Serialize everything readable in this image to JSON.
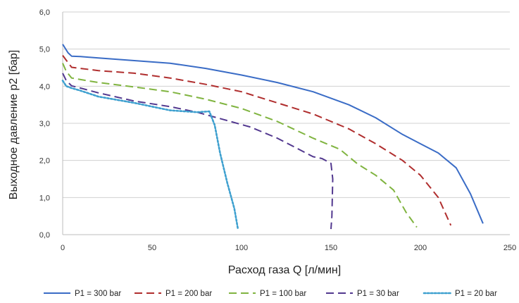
{
  "chart_data": {
    "type": "line",
    "title": "",
    "xlabel": "Расход газа Q [л/мин]",
    "ylabel": "Выходное давление p2 [бар]",
    "xlim": [
      0,
      250
    ],
    "ylim": [
      0,
      6
    ],
    "x_ticks": [
      0,
      50,
      100,
      150,
      200,
      250
    ],
    "x_tick_labels": [
      "0",
      "50",
      "100",
      "150",
      "200",
      "250"
    ],
    "y_ticks": [
      0,
      1,
      2,
      3,
      4,
      5,
      6
    ],
    "y_tick_labels": [
      "0,0",
      "1,0",
      "2,0",
      "3,0",
      "4,0",
      "5,0",
      "6,0"
    ],
    "grid": "horizontal",
    "legend_position": "bottom",
    "series": [
      {
        "name": "P1 = 300 bar",
        "color": "#3a6cc6",
        "dash": "solid",
        "points": [
          [
            0,
            5.13
          ],
          [
            3,
            4.9
          ],
          [
            5,
            4.81
          ],
          [
            10,
            4.8
          ],
          [
            20,
            4.76
          ],
          [
            40,
            4.69
          ],
          [
            60,
            4.62
          ],
          [
            80,
            4.48
          ],
          [
            100,
            4.3
          ],
          [
            120,
            4.1
          ],
          [
            140,
            3.85
          ],
          [
            160,
            3.5
          ],
          [
            175,
            3.15
          ],
          [
            190,
            2.7
          ],
          [
            200,
            2.45
          ],
          [
            210,
            2.2
          ],
          [
            220,
            1.8
          ],
          [
            228,
            1.1
          ],
          [
            235,
            0.3
          ]
        ]
      },
      {
        "name": "P1 = 200 bar",
        "color": "#b02e2e",
        "dash": "dashed",
        "points": [
          [
            0,
            4.83
          ],
          [
            2,
            4.7
          ],
          [
            5,
            4.51
          ],
          [
            10,
            4.48
          ],
          [
            20,
            4.42
          ],
          [
            40,
            4.35
          ],
          [
            60,
            4.22
          ],
          [
            80,
            4.05
          ],
          [
            100,
            3.85
          ],
          [
            120,
            3.55
          ],
          [
            140,
            3.25
          ],
          [
            160,
            2.85
          ],
          [
            175,
            2.45
          ],
          [
            190,
            2.0
          ],
          [
            200,
            1.6
          ],
          [
            210,
            1.0
          ],
          [
            217,
            0.25
          ]
        ]
      },
      {
        "name": "P1 = 100 bar",
        "color": "#80b440",
        "dash": "dashed",
        "points": [
          [
            0,
            4.62
          ],
          [
            2,
            4.4
          ],
          [
            5,
            4.22
          ],
          [
            10,
            4.18
          ],
          [
            20,
            4.1
          ],
          [
            40,
            3.98
          ],
          [
            60,
            3.85
          ],
          [
            80,
            3.65
          ],
          [
            100,
            3.4
          ],
          [
            120,
            3.05
          ],
          [
            140,
            2.6
          ],
          [
            155,
            2.3
          ],
          [
            165,
            1.9
          ],
          [
            175,
            1.6
          ],
          [
            185,
            1.2
          ],
          [
            192,
            0.6
          ],
          [
            198,
            0.2
          ]
        ]
      },
      {
        "name": "P1 = 30 bar",
        "color": "#52388f",
        "dash": "dashed",
        "points": [
          [
            0,
            4.35
          ],
          [
            2,
            4.15
          ],
          [
            5,
            4.01
          ],
          [
            10,
            3.95
          ],
          [
            20,
            3.82
          ],
          [
            40,
            3.6
          ],
          [
            60,
            3.45
          ],
          [
            75,
            3.3
          ],
          [
            90,
            3.1
          ],
          [
            105,
            2.9
          ],
          [
            120,
            2.6
          ],
          [
            130,
            2.35
          ],
          [
            140,
            2.1
          ],
          [
            145,
            2.05
          ],
          [
            150,
            1.92
          ],
          [
            151,
            1.5
          ],
          [
            150.5,
            0.5
          ],
          [
            150,
            0.15
          ]
        ]
      },
      {
        "name": "P1 = 20 bar",
        "color": "#3ea0cf",
        "dash": "dotted",
        "points": [
          [
            0,
            4.15
          ],
          [
            2,
            4.0
          ],
          [
            5,
            3.95
          ],
          [
            10,
            3.88
          ],
          [
            20,
            3.72
          ],
          [
            40,
            3.55
          ],
          [
            60,
            3.35
          ],
          [
            75,
            3.3
          ],
          [
            82,
            3.32
          ],
          [
            85,
            2.95
          ],
          [
            88,
            2.2
          ],
          [
            92,
            1.4
          ],
          [
            96,
            0.7
          ],
          [
            98,
            0.15
          ]
        ]
      }
    ]
  }
}
